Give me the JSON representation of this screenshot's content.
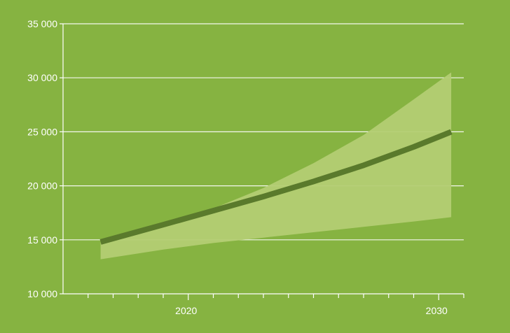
{
  "colors": {
    "background": "#86b341",
    "axis": "#ffffff",
    "gridline": "#ffffff",
    "tick_label": "#ffffff",
    "band_fill": "#b3cd73",
    "line": "#5a7a2c"
  },
  "chart_data": {
    "type": "line",
    "title": "",
    "xlabel": "",
    "ylabel": "",
    "xlim": [
      2015.0,
      2031.0
    ],
    "ylim": [
      10000,
      35000
    ],
    "grid": true,
    "x_ticks": [
      {
        "value": 2020,
        "label": "2020"
      },
      {
        "value": 2030,
        "label": "2030"
      }
    ],
    "x_minor_ticks": [
      2016,
      2017,
      2018,
      2019,
      2021,
      2022,
      2023,
      2024,
      2025,
      2026,
      2027,
      2028,
      2029,
      2031
    ],
    "y_ticks": [
      {
        "value": 10000,
        "label": "10 000"
      },
      {
        "value": 15000,
        "label": "15 000"
      },
      {
        "value": 20000,
        "label": "20 000"
      },
      {
        "value": 25000,
        "label": "25 000"
      },
      {
        "value": 30000,
        "label": "30 000"
      },
      {
        "value": 35000,
        "label": "35 000"
      }
    ],
    "x": [
      2016.5,
      2019,
      2021,
      2023,
      2025,
      2027,
      2029,
      2030.5
    ],
    "series": [
      {
        "values": [
          14800,
          16400,
          17700,
          19000,
          20400,
          21900,
          23600,
          25000
        ]
      }
    ],
    "band": {
      "lower": [
        13200,
        14100,
        14700,
        15200,
        15700,
        16200,
        16700,
        17100
      ],
      "upper": [
        14800,
        16400,
        17900,
        19800,
        22100,
        24700,
        28000,
        30500
      ]
    }
  }
}
